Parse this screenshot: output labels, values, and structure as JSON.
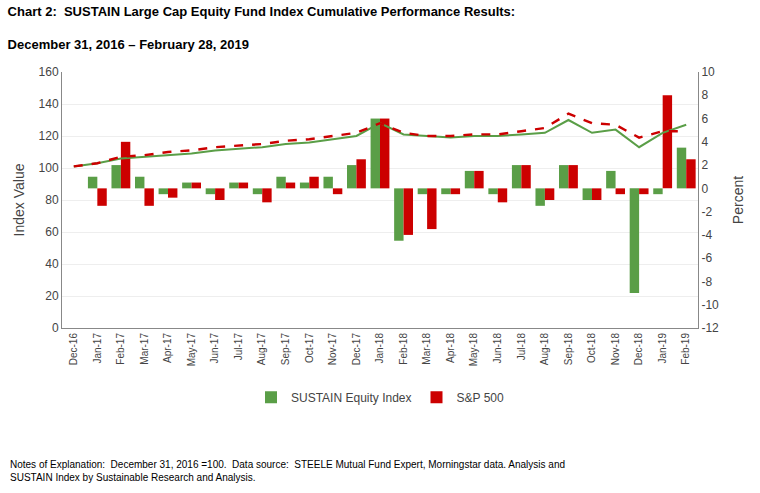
{
  "chart_data": {
    "type": "bar",
    "title": "Chart 2:  SUSTAIN Large Cap Equity Fund Index Cumulative Performance Results:",
    "subtitle": "December 31, 2016 – February 28, 2019",
    "ylabel": "Index Value",
    "y2label": "Percent",
    "annotations": [
      "Notes of Explanation:  December 31, 2016 =100.  Data source:  STEELE Mutual Fund Expert, Morningstar data. Analysis and\nSUSTAIN Index by Sustainable Research and Analysis."
    ],
    "categories": [
      "Dec-16",
      "Jan-17",
      "Feb-17",
      "Mar-17",
      "Apr-17",
      "May-17",
      "Jun-17",
      "Jul-17",
      "Aug-17",
      "Sep-17",
      "Oct-17",
      "Nov-17",
      "Dec-17",
      "Jan-18",
      "Feb-18",
      "Mar-18",
      "Apr-18",
      "May-18",
      "Jun-18",
      "Jul-18",
      "Aug-18",
      "Sep-18",
      "Oct-18",
      "Nov-18",
      "Dec-18",
      "Jan-19",
      "Feb-19"
    ],
    "series": [
      {
        "name": "SUSTAIN Equity Index",
        "type": "bar",
        "axis": "y2",
        "color": "#5a9e47",
        "values": [
          0.0,
          1.0,
          2.0,
          1.0,
          -0.5,
          0.5,
          -0.5,
          0.5,
          -0.5,
          1.0,
          0.5,
          1.0,
          2.0,
          6.0,
          -4.5,
          -0.5,
          -0.5,
          1.5,
          -0.5,
          2.0,
          -1.5,
          2.0,
          -1.0,
          1.5,
          -9.0,
          -0.5,
          3.5
        ]
      },
      {
        "name": "S&P 500",
        "type": "bar",
        "axis": "y2",
        "color": "#cc0000",
        "values": [
          0.0,
          -1.5,
          4.0,
          -1.5,
          -0.8,
          0.5,
          -1.0,
          0.5,
          -1.2,
          0.5,
          1.0,
          -0.5,
          2.5,
          6.0,
          -4.0,
          -3.5,
          -0.5,
          1.5,
          -1.2,
          2.0,
          -1.0,
          2.0,
          -1.0,
          -0.5,
          -0.5,
          8.0,
          2.5
        ]
      },
      {
        "name": "SUSTAIN Equity Index",
        "type": "line",
        "color": "#5a9e47",
        "line_style": "solid",
        "values": [
          101,
          103,
          106,
          107,
          108,
          109,
          111,
          112,
          113,
          115,
          116,
          118,
          120,
          128,
          121,
          120,
          119,
          120,
          120,
          121,
          122,
          130,
          122,
          124,
          113,
          122,
          127
        ]
      },
      {
        "name": "S&P 500",
        "type": "line",
        "color": "#cc0000",
        "line_style": "dashed",
        "values": [
          101,
          103,
          107,
          108,
          110,
          111,
          113,
          114,
          115,
          117,
          118,
          120,
          122,
          128,
          122,
          120,
          120,
          121,
          121,
          123,
          125,
          134,
          128,
          127,
          119,
          123,
          123
        ]
      }
    ],
    "ylim": [
      0,
      160
    ],
    "yticks": [
      0,
      20,
      40,
      60,
      80,
      100,
      120,
      140,
      160
    ],
    "y2lim": [
      -12,
      10
    ],
    "y2ticks": [
      -12,
      -10,
      -8,
      -6,
      -4,
      -2,
      0,
      2,
      4,
      6,
      8,
      10
    ],
    "grid": true,
    "legend": "bottom"
  }
}
